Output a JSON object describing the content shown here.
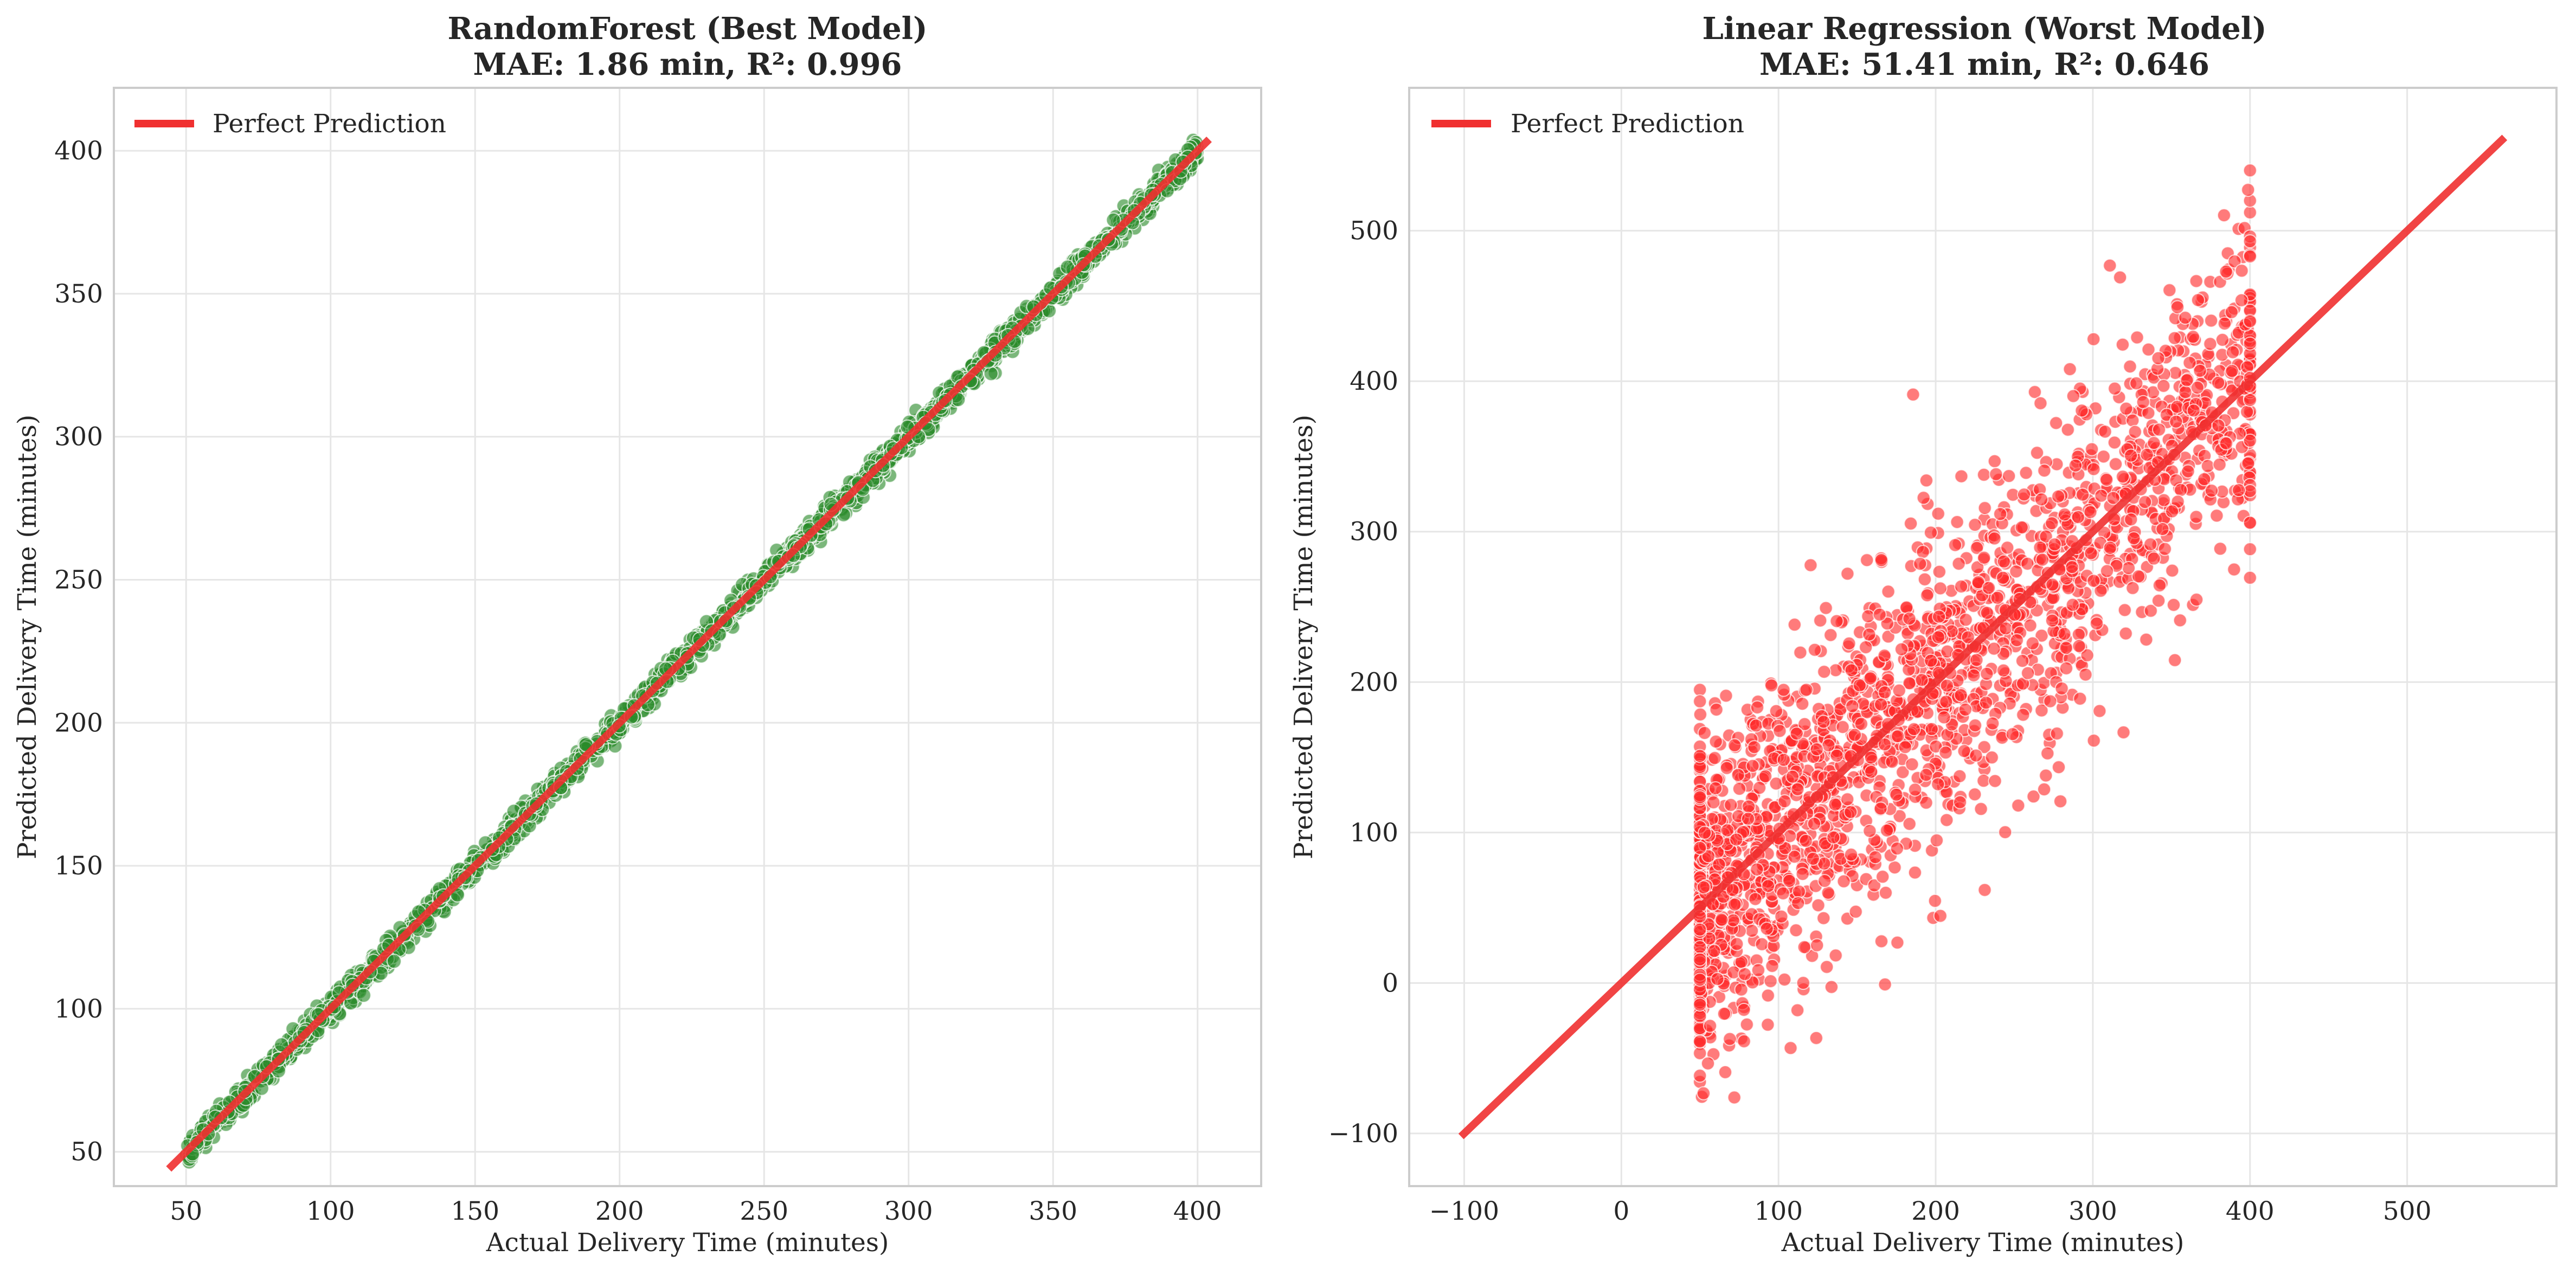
{
  "chart_data": [
    {
      "type": "scatter",
      "title_line1": "RandomForest (Best Model)",
      "title_line2": "MAE: 1.86 min, R²: 0.996",
      "xlabel": "Actual Delivery Time (minutes)",
      "ylabel": "Predicted Delivery Time (minutes)",
      "xlim": [
        25,
        422
      ],
      "ylim": [
        38,
        422
      ],
      "xticks": [
        50,
        100,
        150,
        200,
        250,
        300,
        350,
        400
      ],
      "yticks": [
        50,
        100,
        150,
        200,
        250,
        300,
        350,
        400
      ],
      "grid": true,
      "legend": {
        "label": "Perfect Prediction",
        "placement": "top-left"
      },
      "reference_line": {
        "label": "Perfect Prediction",
        "x": [
          44,
          404
        ],
        "y": [
          44,
          404
        ],
        "color": "#f03030"
      },
      "series": [
        {
          "color": "#2a8a2a",
          "points": {
            "x_range": [
              50,
              400
            ],
            "count": 2000,
            "relation": "y ≈ x",
            "noise_sd": 2.4
          }
        }
      ]
    },
    {
      "type": "scatter",
      "title_line1": "Linear Regression (Worst Model)",
      "title_line2": "MAE: 51.41 min, R²: 0.646",
      "xlabel": "Actual Delivery Time (minutes)",
      "ylabel": "Predicted Delivery Time (minutes)",
      "xlim": [
        -135,
        595
      ],
      "ylim": [
        -135,
        595
      ],
      "xticks": [
        -100,
        0,
        100,
        200,
        300,
        400,
        500
      ],
      "yticks": [
        -100,
        0,
        100,
        200,
        300,
        400,
        500
      ],
      "xtick_labels": [
        "−100",
        "0",
        "100",
        "200",
        "300",
        "400",
        "500"
      ],
      "ytick_labels": [
        "−100",
        "0",
        "100",
        "200",
        "300",
        "400",
        "500"
      ],
      "grid": true,
      "legend": {
        "label": "Perfect Prediction",
        "placement": "top-left"
      },
      "reference_line": {
        "label": "Perfect Prediction",
        "x": [
          -102,
          562
        ],
        "y": [
          -102,
          562
        ],
        "color": "#f03030"
      },
      "series": [
        {
          "color": "#ff2a2a",
          "points": {
            "x_range": [
              50,
              400
            ],
            "count": 2200,
            "relation": "y ≈ x",
            "noise_sd": 52,
            "pileup_at_x": [
              50,
              400
            ],
            "y_range": [
              -102,
              562
            ]
          }
        }
      ]
    }
  ]
}
